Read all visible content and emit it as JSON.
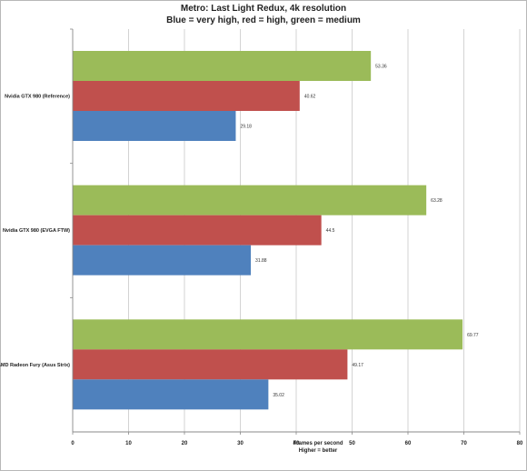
{
  "chart_data": {
    "type": "bar",
    "orientation": "horizontal",
    "title": "Metro: Last Light Redux, 4k resolution",
    "subtitle": "Blue = very high, red = high, green = medium",
    "xlabel": "Frames per second",
    "xlabel_note": "Higher = better",
    "xlim": [
      0,
      80
    ],
    "xticks": [
      0,
      10,
      20,
      30,
      40,
      50,
      60,
      70,
      80
    ],
    "grid": true,
    "categories": [
      "Nvidia GTX 980 (Reference)",
      "Nvidia GTX 980 (EVGA FTW)",
      "AMD Radeon Fury (Asus Strix)"
    ],
    "series": [
      {
        "color": "#9bbb59",
        "values": [
          53.36,
          63.28,
          69.77
        ],
        "labels": [
          "53.36",
          "63.28",
          "69.77"
        ]
      },
      {
        "color": "#c0504d",
        "values": [
          40.62,
          44.5,
          49.17
        ],
        "labels": [
          "40.62",
          "44.5",
          "49.17"
        ]
      },
      {
        "color": "#4f81bd",
        "values": [
          29.18,
          31.88,
          35.02
        ],
        "labels": [
          "29.18",
          "31.88",
          "35.02"
        ]
      }
    ]
  }
}
